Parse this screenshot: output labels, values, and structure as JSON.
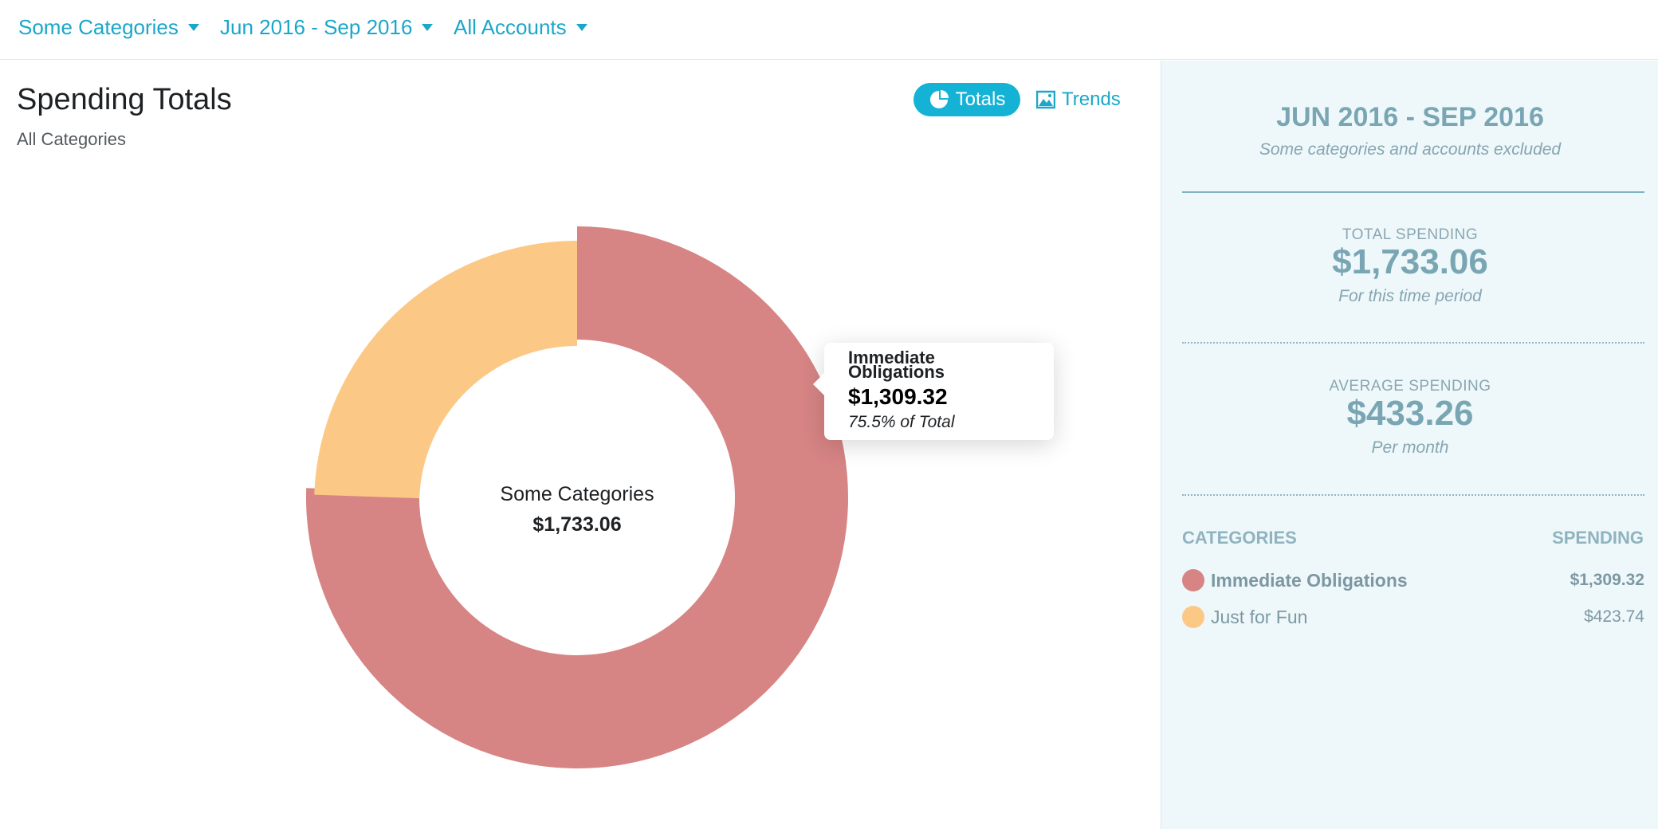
{
  "filters": {
    "categories": "Some Categories",
    "date_range": "Jun 2016 - Sep 2016",
    "accounts": "All Accounts"
  },
  "header": {
    "title": "Spending Totals",
    "subtitle": "All Categories"
  },
  "view_toggle": {
    "totals_label": "Totals",
    "trends_label": "Trends",
    "active": "Totals"
  },
  "chart_data": {
    "type": "pie",
    "donut": true,
    "center_label": "Some Categories",
    "center_value": "$1,733.06",
    "slices": [
      {
        "name": "Immediate Obligations",
        "value": 1309.32,
        "color": "#d68484"
      },
      {
        "name": "Just for Fun",
        "value": 423.74,
        "color": "#fcc885"
      }
    ],
    "tooltip": {
      "name": "Immediate Obligations",
      "amount": "$1,309.32",
      "percent": "75.5% of Total"
    }
  },
  "summary": {
    "range": "JUN 2016 - SEP 2016",
    "note": "Some categories and accounts excluded",
    "total_label": "TOTAL SPENDING",
    "total_value": "$1,733.06",
    "total_sub": "For this time period",
    "avg_label": "AVERAGE SPENDING",
    "avg_value": "$433.26",
    "avg_sub": "Per month",
    "col_categories": "CATEGORIES",
    "col_spending": "SPENDING",
    "rows": [
      {
        "name": "Immediate Obligations",
        "amount": "$1,309.32",
        "color": "#d68484"
      },
      {
        "name": "Just for Fun",
        "amount": "$423.74",
        "color": "#fcc885"
      }
    ]
  },
  "colors": {
    "accent": "#14b3d6",
    "obligations": "#d68484",
    "fun": "#fcc885"
  }
}
